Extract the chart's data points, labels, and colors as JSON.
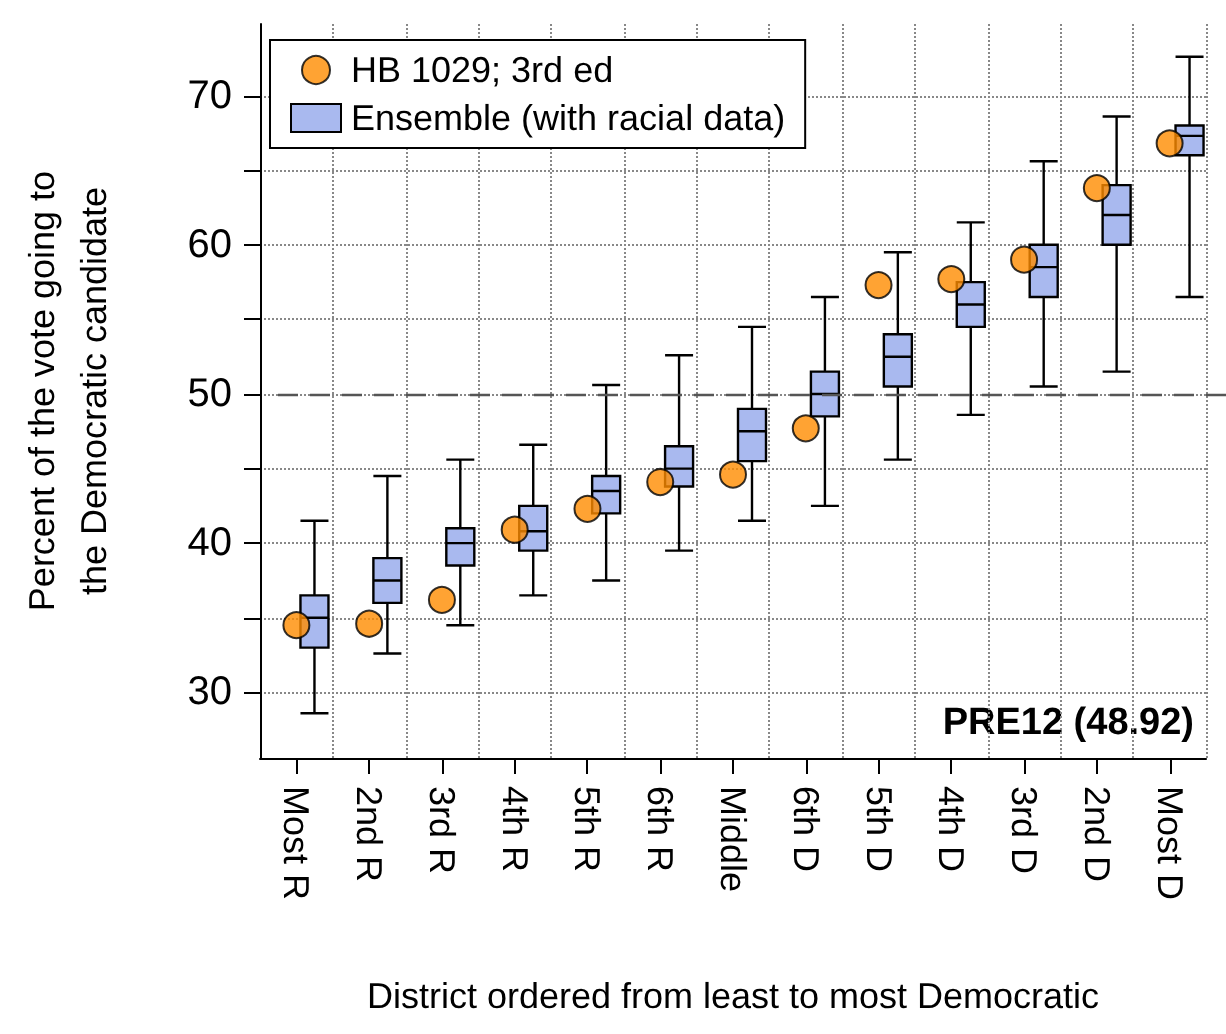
{
  "chart_data": {
    "type": "box",
    "xlabel": "District ordered from least to most Democratic",
    "ylabel": "Percent of the vote going to\nthe Democratic candidate",
    "categories": [
      "Most R",
      "2nd R",
      "3rd R",
      "4th R",
      "5th R",
      "6th R",
      "Middle",
      "6th D",
      "5th D",
      "4th D",
      "3rd D",
      "2nd D",
      "Most D"
    ],
    "series": [
      {
        "name": "Ensemble (with racial data)",
        "color": "#a9b9ef",
        "boxes": [
          {
            "low": 28.6,
            "q1": 33,
            "median": 35,
            "q3": 36.5,
            "high": 41.5
          },
          {
            "low": 32.6,
            "q1": 36,
            "median": 37.5,
            "q3": 39,
            "high": 44.5
          },
          {
            "low": 34.5,
            "q1": 38.5,
            "median": 40,
            "q3": 41,
            "high": 45.6
          },
          {
            "low": 36.5,
            "q1": 39.5,
            "median": 40.8,
            "q3": 42.5,
            "high": 46.6
          },
          {
            "low": 37.5,
            "q1": 42,
            "median": 43.5,
            "q3": 44.5,
            "high": 50.6
          },
          {
            "low": 39.5,
            "q1": 43.8,
            "median": 45,
            "q3": 46.5,
            "high": 52.6
          },
          {
            "low": 41.5,
            "q1": 45.5,
            "median": 47.5,
            "q3": 49,
            "high": 54.5
          },
          {
            "low": 42.5,
            "q1": 48.5,
            "median": 50,
            "q3": 51.5,
            "high": 56.5
          },
          {
            "low": 45.6,
            "q1": 50.5,
            "median": 52.5,
            "q3": 54,
            "high": 59.5
          },
          {
            "low": 48.6,
            "q1": 54.5,
            "median": 56,
            "q3": 57.5,
            "high": 61.5
          },
          {
            "low": 50.5,
            "q1": 56.5,
            "median": 58.5,
            "q3": 60,
            "high": 65.6
          },
          {
            "low": 51.5,
            "q1": 60,
            "median": 62,
            "q3": 64,
            "high": 68.6
          },
          {
            "low": 56.5,
            "q1": 66,
            "median": 67.3,
            "q3": 68,
            "high": 72.6
          }
        ]
      },
      {
        "type": "scatter",
        "name": "HB 1029; 3rd ed",
        "color": "#ff8c00",
        "marker": "circle",
        "values": [
          34.5,
          34.6,
          36.2,
          40.9,
          42.3,
          44.1,
          44.6,
          47.7,
          57.3,
          57.7,
          59,
          63.8,
          66.8
        ]
      }
    ],
    "ylim": [
      25.6,
      74.8
    ],
    "yticks": [
      30,
      {
        "value": 35,
        "label": null
      },
      40,
      {
        "value": 45,
        "label": null
      },
      50,
      {
        "value": 55,
        "label": null
      },
      60,
      {
        "value": 65,
        "label": null
      },
      70
    ],
    "grid": true,
    "legend": "top left",
    "ref_lines": [
      {
        "axis": "y",
        "value": 50,
        "line_style": "dashed",
        "color": "#555555"
      }
    ],
    "annotations": [
      "PRE12 (48.92)"
    ]
  }
}
